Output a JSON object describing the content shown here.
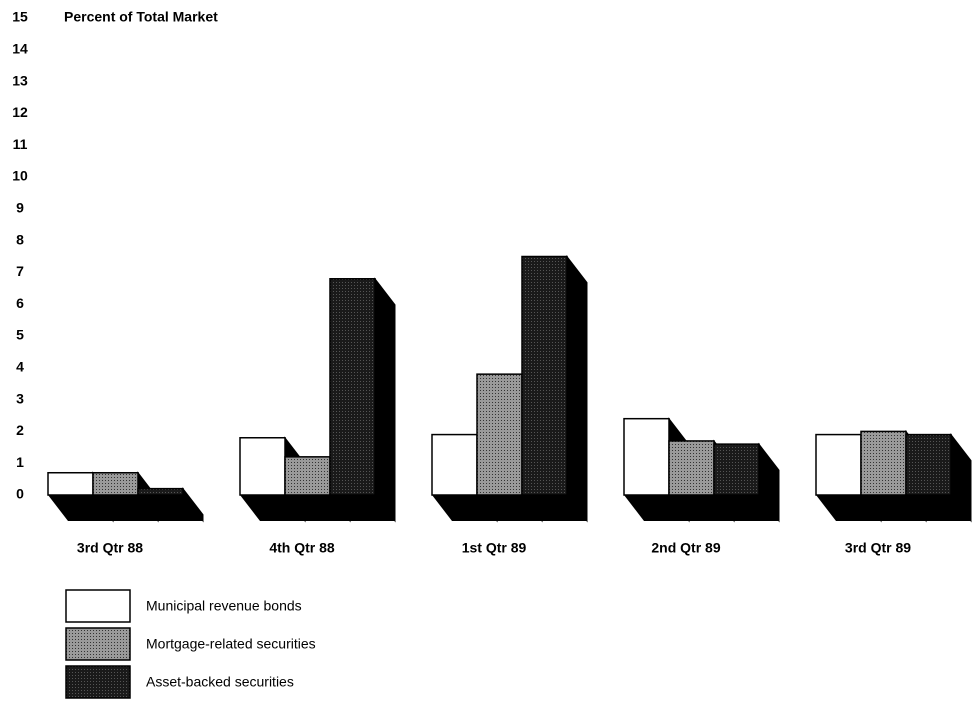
{
  "chart_data": {
    "type": "bar3d",
    "title": "Percent of Total Market",
    "categories": [
      "3rd Qtr 88",
      "4th Qtr 88",
      "1st Qtr 89",
      "2nd Qtr 89",
      "3rd Qtr 89"
    ],
    "series": [
      {
        "name": "Municipal revenue bonds",
        "color": "#ffffff",
        "values": [
          0.7,
          1.8,
          1.9,
          2.4,
          1.9
        ]
      },
      {
        "name": "Mortgage-related securities",
        "color": "#9a9a9a",
        "values": [
          0.7,
          1.2,
          3.8,
          1.7,
          2.0
        ]
      },
      {
        "name": "Asset-backed securities",
        "color": "#1a1a1a",
        "values": [
          0.2,
          6.8,
          7.5,
          1.6,
          1.9
        ]
      }
    ],
    "ylim": [
      0,
      15
    ],
    "yticks": [
      0,
      1,
      2,
      3,
      4,
      5,
      6,
      7,
      8,
      9,
      10,
      11,
      12,
      13,
      14,
      15
    ],
    "legend": "bottom-left"
  }
}
